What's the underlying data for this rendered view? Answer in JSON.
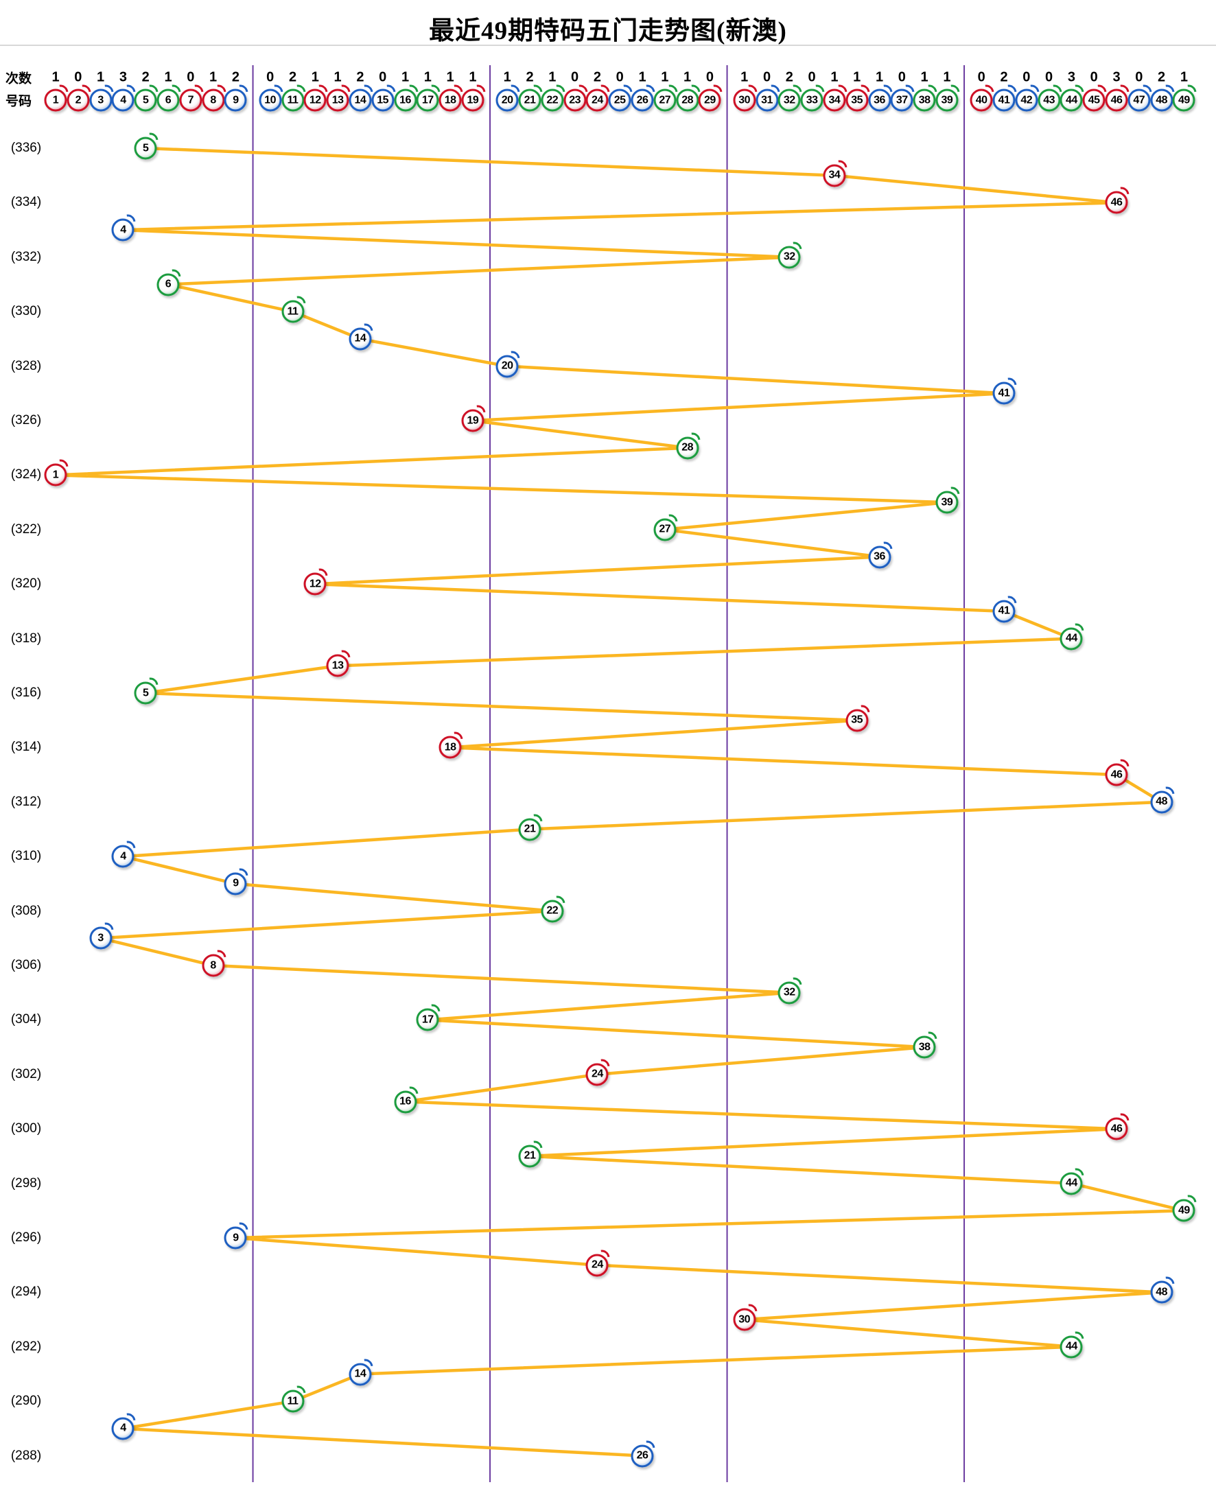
{
  "title": "最近49期特码五门走势图(新澳)",
  "header": {
    "counts_label": "次数",
    "numbers_label": "号码"
  },
  "row_labels": [
    "(336)",
    "(334)",
    "(332)",
    "(330)",
    "(328)",
    "(326)",
    "(324)",
    "(322)",
    "(320)",
    "(318)",
    "(316)",
    "(314)",
    "(312)",
    "(310)",
    "(308)",
    "(306)",
    "(304)",
    "(302)",
    "(300)",
    "(298)",
    "(296)",
    "(294)",
    "(292)",
    "(290)",
    "(288)"
  ],
  "chart_data": {
    "type": "line",
    "title": "最近49期特码五门走势图(新澳)",
    "x_axis": "ball numbers 1-49 in five sections (五门)",
    "y_axis": "periods, newest (336) at top to oldest (288) at bottom, one draw per row",
    "sections": [
      [
        1,
        9
      ],
      [
        10,
        19
      ],
      [
        20,
        29
      ],
      [
        30,
        39
      ],
      [
        40,
        49
      ]
    ],
    "counts": [
      1,
      0,
      1,
      3,
      2,
      1,
      0,
      1,
      2,
      0,
      2,
      1,
      1,
      2,
      0,
      1,
      1,
      1,
      1,
      1,
      2,
      1,
      0,
      2,
      0,
      1,
      1,
      1,
      0,
      1,
      0,
      2,
      0,
      1,
      1,
      1,
      0,
      1,
      1,
      0,
      2,
      0,
      0,
      3,
      0,
      3,
      0,
      2,
      1
    ],
    "sequence": [
      5,
      34,
      46,
      4,
      32,
      6,
      11,
      14,
      20,
      41,
      19,
      28,
      1,
      39,
      27,
      36,
      12,
      41,
      44,
      13,
      5,
      35,
      18,
      46,
      48,
      21,
      4,
      9,
      22,
      3,
      8,
      32,
      17,
      38,
      24,
      16,
      46,
      21,
      44,
      49,
      9,
      24,
      48,
      30,
      44,
      14,
      11,
      4,
      26
    ],
    "period_start": 336,
    "period_end": 288,
    "ball_colors": {
      "red": [
        1,
        2,
        7,
        8,
        12,
        13,
        18,
        19,
        23,
        24,
        29,
        30,
        34,
        35,
        40,
        45,
        46
      ],
      "blue": [
        3,
        4,
        9,
        10,
        14,
        15,
        20,
        25,
        26,
        31,
        36,
        37,
        41,
        42,
        47,
        48
      ],
      "green": [
        5,
        6,
        11,
        16,
        17,
        21,
        22,
        27,
        28,
        32,
        33,
        38,
        39,
        43,
        44,
        49
      ]
    },
    "colors": {
      "trend_line": "#FBB622",
      "divider": "#6A3AA0",
      "top_rule": "#CCCCCC",
      "red": "#CE1126",
      "blue": "#1E5FC1",
      "green": "#1C9C3F"
    },
    "legend_position": "none",
    "grid": "vertical section dividers only"
  }
}
